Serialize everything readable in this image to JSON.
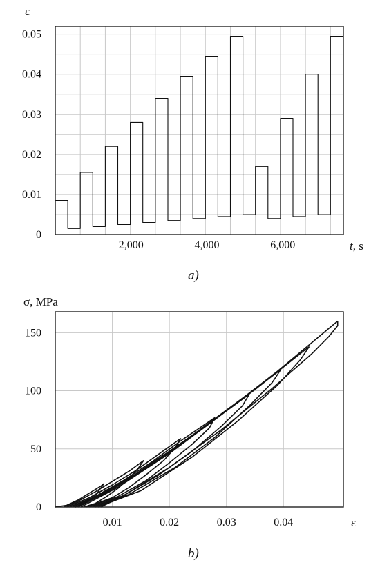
{
  "chart_data": [
    {
      "type": "line",
      "panel_label": "a",
      "ylabel": "ε",
      "xlabel_var": "t",
      "xlabel_unit": ", s",
      "xlim": [
        0,
        7600
      ],
      "ylim": [
        0,
        0.052
      ],
      "x_ticks": [
        2000,
        4000,
        6000
      ],
      "x_tick_labels": [
        "2,000",
        "4,000",
        "6,000"
      ],
      "y_ticks": [
        0,
        0.01,
        0.02,
        0.03,
        0.04,
        0.05
      ],
      "y_tick_labels": [
        "0",
        "0.01",
        "0.02",
        "0.03",
        "0.04",
        "0.05"
      ],
      "grid": true,
      "series": [
        {
          "x": [
            0,
            0,
            330,
            330,
            660,
            660,
            990,
            990,
            1320,
            1320,
            1650,
            1650,
            1980,
            1980,
            2310,
            2310,
            2640,
            2640,
            2970,
            2970,
            3300,
            3300,
            3630,
            3630,
            3960,
            3960,
            4290,
            4290,
            4620,
            4620,
            4950,
            4950,
            5280,
            5280,
            5610,
            5610,
            5940,
            5940,
            6270,
            6270,
            6600,
            6600,
            6930,
            6930,
            7260,
            7260,
            7590
          ],
          "y": [
            0,
            0.0085,
            0.0085,
            0.0015,
            0.0015,
            0.0155,
            0.0155,
            0.002,
            0.002,
            0.022,
            0.022,
            0.0025,
            0.0025,
            0.028,
            0.028,
            0.003,
            0.003,
            0.034,
            0.034,
            0.0035,
            0.0035,
            0.0395,
            0.0395,
            0.004,
            0.004,
            0.0445,
            0.0445,
            0.0045,
            0.0045,
            0.0495,
            0.0495,
            0.005,
            0.005,
            0.017,
            0.017,
            0.004,
            0.004,
            0.029,
            0.029,
            0.0045,
            0.0045,
            0.04,
            0.04,
            0.005,
            0.005,
            0.0495,
            0.0495
          ]
        }
      ]
    },
    {
      "type": "line",
      "panel_label": "b",
      "ylabel": "σ, MPa",
      "xlabel": "ε",
      "xlim": [
        0,
        0.0505
      ],
      "ylim": [
        0,
        168
      ],
      "x_ticks": [
        0.01,
        0.02,
        0.03,
        0.04
      ],
      "x_tick_labels": [
        "0.01",
        "0.02",
        "0.03",
        "0.04"
      ],
      "y_ticks": [
        0,
        50,
        100,
        150
      ],
      "y_tick_labels": [
        "0",
        "50",
        "100",
        "150"
      ],
      "grid": true,
      "series": [
        {
          "x": [
            0.0,
            0.002,
            0.004,
            0.006,
            0.008,
            0.0085
          ],
          "y": [
            0,
            1.5,
            6,
            12,
            18,
            20
          ]
        },
        {
          "x": [
            0.0085,
            0.0078,
            0.007,
            0.006,
            0.005,
            0.004,
            0.0035
          ],
          "y": [
            20,
            15,
            10,
            6,
            2.5,
            0.5,
            0
          ]
        },
        {
          "x": [
            0.0015,
            0.004,
            0.007,
            0.01,
            0.013,
            0.0155
          ],
          "y": [
            0,
            5,
            13,
            22,
            31,
            40
          ]
        },
        {
          "x": [
            0.0155,
            0.0145,
            0.013,
            0.011,
            0.009,
            0.007,
            0.005
          ],
          "y": [
            40,
            33,
            25,
            16,
            9,
            3,
            0
          ]
        },
        {
          "x": [
            0.002,
            0.006,
            0.01,
            0.014,
            0.018,
            0.022
          ],
          "y": [
            0,
            8,
            19,
            31,
            45,
            59
          ]
        },
        {
          "x": [
            0.022,
            0.021,
            0.019,
            0.016,
            0.013,
            0.01,
            0.0055
          ],
          "y": [
            59,
            51,
            40,
            28,
            17,
            8,
            0
          ]
        },
        {
          "x": [
            0.0025,
            0.007,
            0.012,
            0.017,
            0.022,
            0.028
          ],
          "y": [
            0,
            9,
            23,
            39,
            57,
            77
          ]
        },
        {
          "x": [
            0.028,
            0.027,
            0.024,
            0.02,
            0.016,
            0.011,
            0.006
          ],
          "y": [
            77,
            68,
            54,
            38,
            23,
            9,
            0
          ]
        },
        {
          "x": [
            0.003,
            0.008,
            0.014,
            0.02,
            0.027,
            0.034
          ],
          "y": [
            0,
            11,
            28,
            48,
            72,
            97
          ]
        },
        {
          "x": [
            0.034,
            0.0328,
            0.029,
            0.024,
            0.018,
            0.012,
            0.0065
          ],
          "y": [
            97,
            87,
            69,
            48,
            27,
            10,
            0
          ]
        },
        {
          "x": [
            0.0035,
            0.009,
            0.016,
            0.023,
            0.031,
            0.0395
          ],
          "y": [
            0,
            13,
            34,
            58,
            87,
            118
          ]
        },
        {
          "x": [
            0.0395,
            0.038,
            0.034,
            0.028,
            0.021,
            0.013,
            0.007
          ],
          "y": [
            118,
            107,
            87,
            60,
            34,
            11,
            0
          ]
        },
        {
          "x": [
            0.004,
            0.01,
            0.018,
            0.026,
            0.035,
            0.0445
          ],
          "y": [
            0,
            15,
            40,
            68,
            101,
            138
          ]
        },
        {
          "x": [
            0.0445,
            0.043,
            0.039,
            0.032,
            0.024,
            0.015,
            0.0075
          ],
          "y": [
            138,
            127,
            105,
            74,
            43,
            14,
            0
          ]
        },
        {
          "x": [
            0.0045,
            0.011,
            0.02,
            0.029,
            0.039,
            0.0495
          ],
          "y": [
            0,
            17,
            46,
            79,
            117,
            160
          ]
        },
        {
          "x": [
            0.0495,
            0.0495,
            0.048,
            0.045,
            0.038,
            0.029,
            0.02,
            0.012,
            0.008
          ],
          "y": [
            160,
            156,
            147,
            132,
            102,
            66,
            34,
            10,
            0
          ]
        }
      ]
    }
  ]
}
